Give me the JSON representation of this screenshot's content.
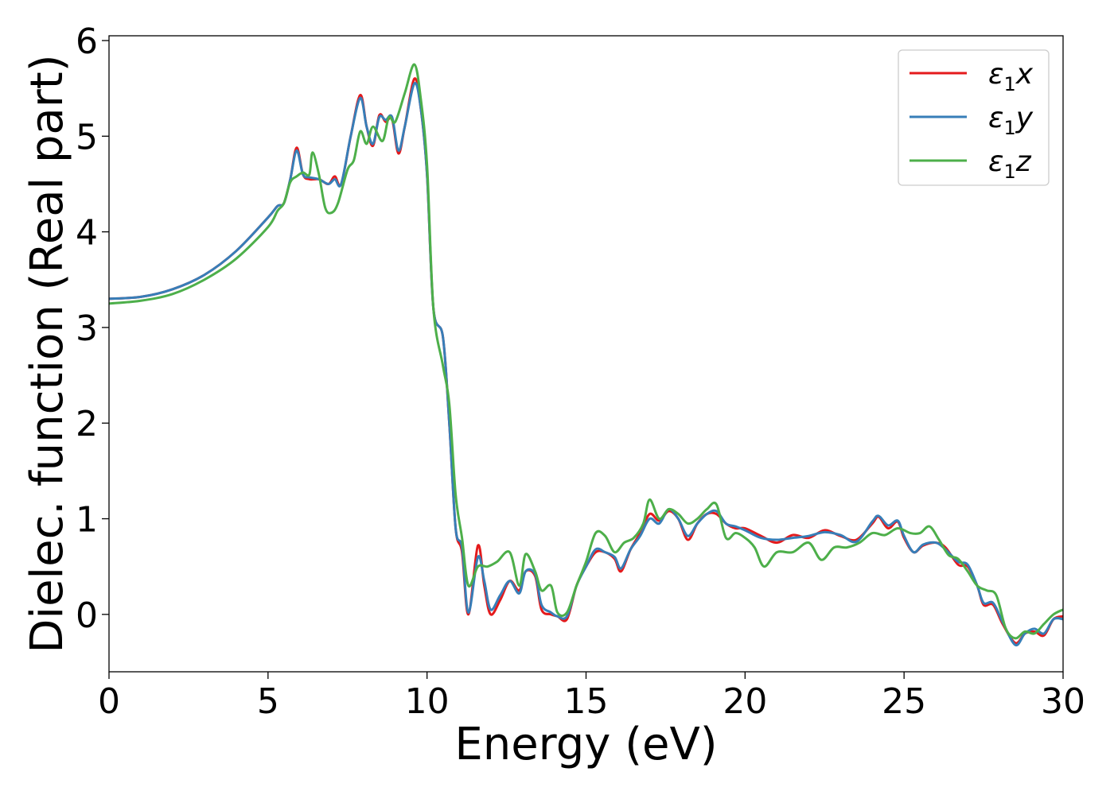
{
  "chart_data": {
    "type": "line",
    "xlabel": "Energy (eV)",
    "ylabel": "Dielec. function (Real part)",
    "xlim": [
      0,
      30
    ],
    "ylim": [
      -0.6,
      6.05
    ],
    "xticks": [
      0,
      5,
      10,
      15,
      20,
      25,
      30
    ],
    "yticks": [
      0,
      1,
      2,
      3,
      4,
      5,
      6
    ],
    "grid": false,
    "legend_position": "top-right",
    "series": [
      {
        "name": "ε1x",
        "symbol": "ε",
        "subscript": "1",
        "suffix": "x",
        "color": "#e41a1c",
        "points": [
          [
            0,
            3.3
          ],
          [
            1,
            3.32
          ],
          [
            2,
            3.4
          ],
          [
            3,
            3.55
          ],
          [
            4,
            3.8
          ],
          [
            5,
            4.15
          ],
          [
            5.3,
            4.27
          ],
          [
            5.5,
            4.3
          ],
          [
            5.7,
            4.55
          ],
          [
            5.9,
            4.88
          ],
          [
            6.1,
            4.6
          ],
          [
            6.3,
            4.55
          ],
          [
            6.6,
            4.55
          ],
          [
            6.9,
            4.5
          ],
          [
            7.1,
            4.58
          ],
          [
            7.3,
            4.5
          ],
          [
            7.6,
            5.0
          ],
          [
            7.9,
            5.43
          ],
          [
            8.1,
            5.1
          ],
          [
            8.3,
            4.9
          ],
          [
            8.5,
            5.22
          ],
          [
            8.7,
            5.15
          ],
          [
            8.9,
            5.18
          ],
          [
            9.1,
            4.82
          ],
          [
            9.3,
            5.1
          ],
          [
            9.6,
            5.6
          ],
          [
            9.8,
            5.3
          ],
          [
            10.0,
            4.6
          ],
          [
            10.2,
            3.2
          ],
          [
            10.5,
            2.9
          ],
          [
            10.7,
            2.0
          ],
          [
            10.9,
            0.9
          ],
          [
            11.1,
            0.65
          ],
          [
            11.3,
            0.0
          ],
          [
            11.6,
            0.72
          ],
          [
            11.8,
            0.3
          ],
          [
            12.0,
            0.0
          ],
          [
            12.3,
            0.15
          ],
          [
            12.6,
            0.35
          ],
          [
            12.9,
            0.25
          ],
          [
            13.1,
            0.45
          ],
          [
            13.4,
            0.4
          ],
          [
            13.6,
            0.05
          ],
          [
            13.9,
            0.0
          ],
          [
            14.1,
            -0.02
          ],
          [
            14.4,
            -0.05
          ],
          [
            14.7,
            0.3
          ],
          [
            15.0,
            0.5
          ],
          [
            15.3,
            0.65
          ],
          [
            15.6,
            0.65
          ],
          [
            15.9,
            0.58
          ],
          [
            16.1,
            0.45
          ],
          [
            16.4,
            0.68
          ],
          [
            16.7,
            0.85
          ],
          [
            17.0,
            1.05
          ],
          [
            17.3,
            0.98
          ],
          [
            17.6,
            1.08
          ],
          [
            17.9,
            1.0
          ],
          [
            18.2,
            0.78
          ],
          [
            18.5,
            0.95
          ],
          [
            18.8,
            1.05
          ],
          [
            19.1,
            1.05
          ],
          [
            19.4,
            0.95
          ],
          [
            19.7,
            0.9
          ],
          [
            20.0,
            0.9
          ],
          [
            20.5,
            0.82
          ],
          [
            21.0,
            0.75
          ],
          [
            21.5,
            0.83
          ],
          [
            22.0,
            0.8
          ],
          [
            22.5,
            0.88
          ],
          [
            23.0,
            0.82
          ],
          [
            23.5,
            0.78
          ],
          [
            24.0,
            0.95
          ],
          [
            24.2,
            1.02
          ],
          [
            24.5,
            0.9
          ],
          [
            24.8,
            0.97
          ],
          [
            25.0,
            0.8
          ],
          [
            25.3,
            0.65
          ],
          [
            25.6,
            0.72
          ],
          [
            26.0,
            0.75
          ],
          [
            26.3,
            0.7
          ],
          [
            26.7,
            0.52
          ],
          [
            27.0,
            0.5
          ],
          [
            27.3,
            0.3
          ],
          [
            27.5,
            0.1
          ],
          [
            27.8,
            0.1
          ],
          [
            28.1,
            -0.1
          ],
          [
            28.5,
            -0.3
          ],
          [
            28.8,
            -0.2
          ],
          [
            29.1,
            -0.18
          ],
          [
            29.4,
            -0.22
          ],
          [
            29.7,
            -0.05
          ],
          [
            30,
            -0.02
          ]
        ]
      },
      {
        "name": "ε1y",
        "symbol": "ε",
        "subscript": "1",
        "suffix": "y",
        "color": "#377eb8",
        "points": [
          [
            0,
            3.3
          ],
          [
            1,
            3.32
          ],
          [
            2,
            3.4
          ],
          [
            3,
            3.55
          ],
          [
            4,
            3.8
          ],
          [
            5,
            4.15
          ],
          [
            5.3,
            4.27
          ],
          [
            5.5,
            4.3
          ],
          [
            5.7,
            4.55
          ],
          [
            5.9,
            4.85
          ],
          [
            6.1,
            4.6
          ],
          [
            6.3,
            4.57
          ],
          [
            6.6,
            4.55
          ],
          [
            6.9,
            4.5
          ],
          [
            7.1,
            4.55
          ],
          [
            7.3,
            4.5
          ],
          [
            7.6,
            5.0
          ],
          [
            7.9,
            5.4
          ],
          [
            8.1,
            5.1
          ],
          [
            8.3,
            4.92
          ],
          [
            8.5,
            5.2
          ],
          [
            8.7,
            5.17
          ],
          [
            8.9,
            5.2
          ],
          [
            9.1,
            4.85
          ],
          [
            9.3,
            5.1
          ],
          [
            9.6,
            5.55
          ],
          [
            9.8,
            5.3
          ],
          [
            10.0,
            4.6
          ],
          [
            10.2,
            3.2
          ],
          [
            10.5,
            2.9
          ],
          [
            10.7,
            2.0
          ],
          [
            10.9,
            0.9
          ],
          [
            11.1,
            0.7
          ],
          [
            11.3,
            0.02
          ],
          [
            11.6,
            0.6
          ],
          [
            11.8,
            0.35
          ],
          [
            12.0,
            0.05
          ],
          [
            12.3,
            0.2
          ],
          [
            12.6,
            0.35
          ],
          [
            12.9,
            0.22
          ],
          [
            13.1,
            0.45
          ],
          [
            13.4,
            0.42
          ],
          [
            13.6,
            0.1
          ],
          [
            13.9,
            0.02
          ],
          [
            14.1,
            -0.02
          ],
          [
            14.4,
            -0.02
          ],
          [
            14.7,
            0.3
          ],
          [
            15.0,
            0.5
          ],
          [
            15.3,
            0.68
          ],
          [
            15.6,
            0.65
          ],
          [
            15.9,
            0.6
          ],
          [
            16.1,
            0.48
          ],
          [
            16.4,
            0.68
          ],
          [
            16.7,
            0.82
          ],
          [
            17.0,
            1.0
          ],
          [
            17.3,
            0.95
          ],
          [
            17.6,
            1.1
          ],
          [
            17.9,
            1.0
          ],
          [
            18.2,
            0.82
          ],
          [
            18.5,
            0.95
          ],
          [
            18.8,
            1.05
          ],
          [
            19.1,
            1.08
          ],
          [
            19.4,
            0.95
          ],
          [
            19.7,
            0.92
          ],
          [
            20.0,
            0.88
          ],
          [
            20.5,
            0.8
          ],
          [
            21.0,
            0.78
          ],
          [
            21.5,
            0.8
          ],
          [
            22.0,
            0.82
          ],
          [
            22.5,
            0.86
          ],
          [
            23.0,
            0.83
          ],
          [
            23.5,
            0.76
          ],
          [
            24.0,
            0.97
          ],
          [
            24.2,
            1.03
          ],
          [
            24.5,
            0.93
          ],
          [
            24.8,
            0.98
          ],
          [
            25.0,
            0.82
          ],
          [
            25.3,
            0.65
          ],
          [
            25.6,
            0.73
          ],
          [
            26.0,
            0.75
          ],
          [
            26.3,
            0.68
          ],
          [
            26.7,
            0.55
          ],
          [
            27.0,
            0.52
          ],
          [
            27.3,
            0.3
          ],
          [
            27.5,
            0.12
          ],
          [
            27.8,
            0.12
          ],
          [
            28.1,
            -0.08
          ],
          [
            28.5,
            -0.32
          ],
          [
            28.8,
            -0.2
          ],
          [
            29.1,
            -0.15
          ],
          [
            29.4,
            -0.2
          ],
          [
            29.7,
            -0.05
          ],
          [
            30,
            -0.05
          ]
        ]
      },
      {
        "name": "ε1z",
        "symbol": "ε",
        "subscript": "1",
        "suffix": "z",
        "color": "#4daf4a",
        "points": [
          [
            0,
            3.25
          ],
          [
            1,
            3.28
          ],
          [
            2,
            3.35
          ],
          [
            3,
            3.5
          ],
          [
            4,
            3.72
          ],
          [
            5,
            4.05
          ],
          [
            5.3,
            4.22
          ],
          [
            5.5,
            4.3
          ],
          [
            5.7,
            4.52
          ],
          [
            5.9,
            4.58
          ],
          [
            6.1,
            4.62
          ],
          [
            6.3,
            4.6
          ],
          [
            6.4,
            4.83
          ],
          [
            6.6,
            4.6
          ],
          [
            6.8,
            4.25
          ],
          [
            7.0,
            4.2
          ],
          [
            7.2,
            4.3
          ],
          [
            7.5,
            4.65
          ],
          [
            7.7,
            4.75
          ],
          [
            7.9,
            5.05
          ],
          [
            8.1,
            4.92
          ],
          [
            8.3,
            5.1
          ],
          [
            8.6,
            4.95
          ],
          [
            8.8,
            5.2
          ],
          [
            9.0,
            5.15
          ],
          [
            9.3,
            5.45
          ],
          [
            9.6,
            5.75
          ],
          [
            9.8,
            5.4
          ],
          [
            10.0,
            4.7
          ],
          [
            10.2,
            3.2
          ],
          [
            10.5,
            2.6
          ],
          [
            10.7,
            2.2
          ],
          [
            10.9,
            1.25
          ],
          [
            11.1,
            0.8
          ],
          [
            11.3,
            0.3
          ],
          [
            11.6,
            0.5
          ],
          [
            11.9,
            0.5
          ],
          [
            12.2,
            0.55
          ],
          [
            12.6,
            0.65
          ],
          [
            12.9,
            0.3
          ],
          [
            13.1,
            0.63
          ],
          [
            13.4,
            0.45
          ],
          [
            13.6,
            0.25
          ],
          [
            13.9,
            0.3
          ],
          [
            14.1,
            0.02
          ],
          [
            14.4,
            0.02
          ],
          [
            14.7,
            0.3
          ],
          [
            15.0,
            0.55
          ],
          [
            15.3,
            0.85
          ],
          [
            15.6,
            0.82
          ],
          [
            15.9,
            0.65
          ],
          [
            16.2,
            0.75
          ],
          [
            16.5,
            0.8
          ],
          [
            16.8,
            0.95
          ],
          [
            17.0,
            1.2
          ],
          [
            17.3,
            1.0
          ],
          [
            17.6,
            1.1
          ],
          [
            17.9,
            1.05
          ],
          [
            18.2,
            0.95
          ],
          [
            18.5,
            1.0
          ],
          [
            18.8,
            1.1
          ],
          [
            19.1,
            1.15
          ],
          [
            19.4,
            0.8
          ],
          [
            19.7,
            0.85
          ],
          [
            20.0,
            0.8
          ],
          [
            20.3,
            0.7
          ],
          [
            20.6,
            0.5
          ],
          [
            21.0,
            0.65
          ],
          [
            21.5,
            0.65
          ],
          [
            22.0,
            0.75
          ],
          [
            22.4,
            0.57
          ],
          [
            22.8,
            0.7
          ],
          [
            23.2,
            0.7
          ],
          [
            23.6,
            0.75
          ],
          [
            24.0,
            0.85
          ],
          [
            24.4,
            0.83
          ],
          [
            24.8,
            0.9
          ],
          [
            25.2,
            0.85
          ],
          [
            25.5,
            0.85
          ],
          [
            25.8,
            0.92
          ],
          [
            26.1,
            0.78
          ],
          [
            26.4,
            0.62
          ],
          [
            26.7,
            0.58
          ],
          [
            27.0,
            0.45
          ],
          [
            27.3,
            0.3
          ],
          [
            27.6,
            0.25
          ],
          [
            27.9,
            0.2
          ],
          [
            28.2,
            -0.15
          ],
          [
            28.5,
            -0.25
          ],
          [
            28.8,
            -0.18
          ],
          [
            29.1,
            -0.2
          ],
          [
            29.4,
            -0.1
          ],
          [
            29.7,
            0.0
          ],
          [
            30,
            0.05
          ]
        ]
      }
    ]
  }
}
